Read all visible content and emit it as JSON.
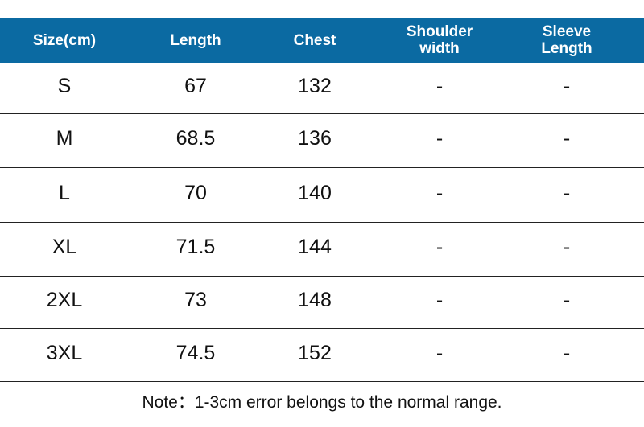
{
  "table": {
    "columns": [
      "Size(cm)",
      "Length",
      "Chest",
      "Shoulder width",
      "Sleeve Length"
    ],
    "rows": [
      [
        "S",
        "67",
        "132",
        "-",
        "-"
      ],
      [
        "M",
        "68.5",
        "136",
        "-",
        "-"
      ],
      [
        "L",
        "70",
        "140",
        "-",
        "-"
      ],
      [
        "XL",
        "71.5",
        "144",
        "-",
        "-"
      ],
      [
        "2XL",
        "73",
        "148",
        "-",
        "-"
      ],
      [
        "3XL",
        "74.5",
        "152",
        "-",
        "-"
      ]
    ]
  },
  "note": "Note：1-3cm error belongs to the normal range."
}
